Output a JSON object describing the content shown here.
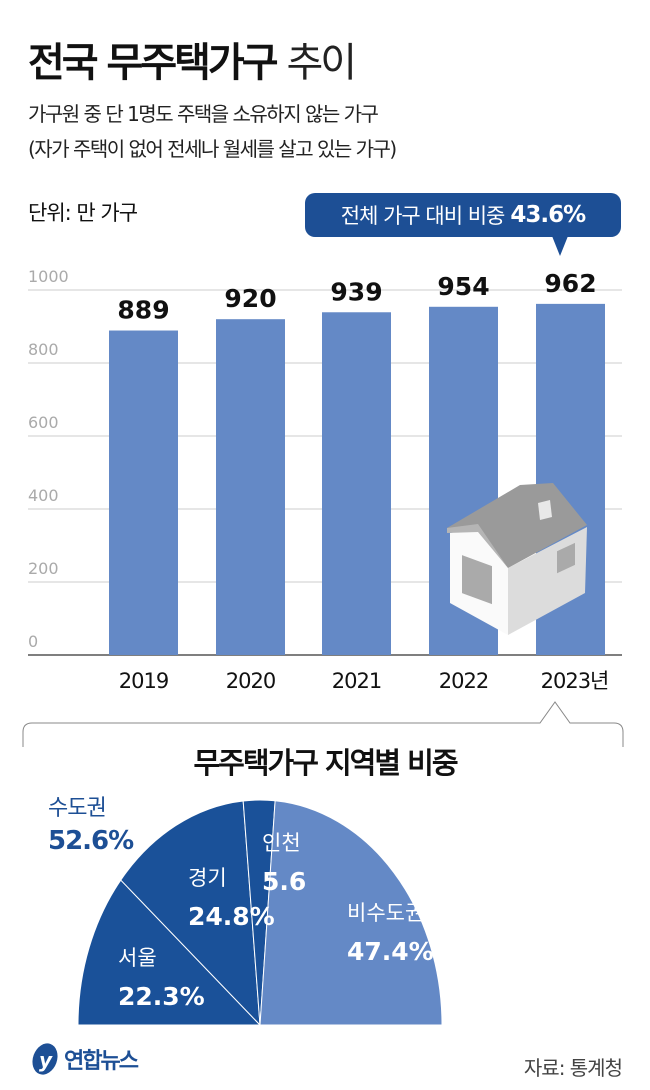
{
  "title": {
    "bold": "전국 무주택가구",
    "light": "추이"
  },
  "subtitle": [
    "가구원 중 단 1명도 주택을 소유하지 않는 가구",
    "(자가 주택이 없어 전세나 월세를 살고 있는 가구)"
  ],
  "unit": "단위: 만 가구",
  "callout": {
    "label": "전체 가구 대비 비중",
    "value": "43.6%"
  },
  "colors": {
    "bar": "#6489c6",
    "dark": "#1a5199",
    "light": "#6489c6",
    "callout": "#1d4f95"
  },
  "chart_data": [
    {
      "type": "bar",
      "title": "전국 무주택가구 추이",
      "ylabel": "만 가구",
      "categories": [
        "2019",
        "2020",
        "2021",
        "2022",
        "2023년"
      ],
      "values": [
        889,
        920,
        939,
        954,
        962
      ],
      "value_labels": [
        "889",
        "920",
        "939",
        "954",
        "962"
      ],
      "yticks": [
        0,
        200,
        400,
        600,
        800,
        1000
      ],
      "ylim": [
        0,
        1000
      ],
      "grid": true
    },
    {
      "type": "pie",
      "title": "무주택가구 지역별 비중",
      "slices": [
        {
          "label": "서울",
          "value": 22.3,
          "text": "22.3%",
          "group": "dark"
        },
        {
          "label": "경기",
          "value": 24.8,
          "text": "24.8%",
          "group": "dark"
        },
        {
          "label": "인천",
          "value": 5.6,
          "text": "5.6",
          "group": "dark"
        },
        {
          "label": "비수도권",
          "value": 47.4,
          "text": "47.4%",
          "group": "light"
        }
      ],
      "group_label": {
        "label": "수도권",
        "value": "52.6%"
      },
      "shape": "half"
    }
  ],
  "footer": {
    "logo": "연합뉴스",
    "source": "자료: 통계청"
  }
}
